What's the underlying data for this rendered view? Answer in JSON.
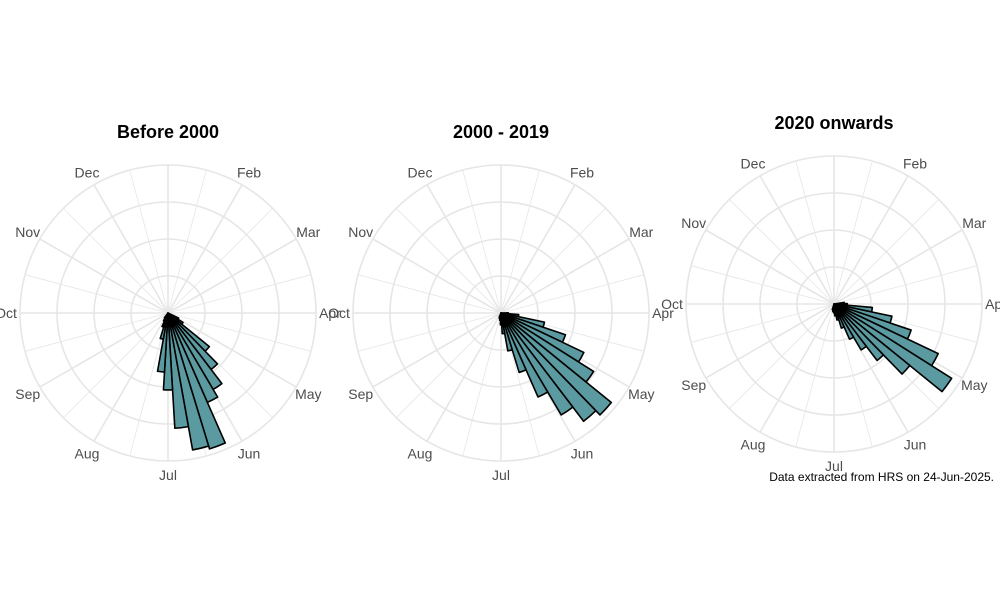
{
  "caption": "Data extracted from HRS on 24-Jun-2025.",
  "colors": {
    "bar_fill": "#5b9aa0",
    "bar_stroke": "#000000",
    "grid": "#e6e6e6"
  },
  "chart_data": [
    {
      "type": "bar",
      "polar": true,
      "title": "Before 2000",
      "month_labels": [
        "Jan",
        "Feb",
        "Mar",
        "Apr",
        "May",
        "Jun",
        "Jul",
        "Aug",
        "Sep",
        "Oct",
        "Nov",
        "Dec"
      ],
      "x_unit": "week of year",
      "x": [
        18,
        19,
        20,
        21,
        22,
        23,
        24,
        25,
        26,
        27,
        28,
        29,
        30,
        31,
        32
      ],
      "values": [
        0.08,
        0.12,
        0.36,
        0.48,
        0.6,
        0.66,
        0.96,
        0.94,
        0.78,
        0.52,
        0.4,
        0.18,
        0.1,
        0.06,
        0.04
      ],
      "ylim": [
        0,
        1
      ],
      "grid": true
    },
    {
      "type": "bar",
      "polar": true,
      "title": "2000 - 2019",
      "month_labels": [
        "Jan",
        "Feb",
        "Mar",
        "Apr",
        "May",
        "Jun",
        "Jul",
        "Aug",
        "Sep",
        "Oct",
        "Nov",
        "Dec"
      ],
      "x_unit": "week of year",
      "x": [
        14,
        15,
        16,
        17,
        18,
        19,
        20,
        21,
        22,
        23,
        24,
        25,
        26,
        27,
        28,
        29,
        30
      ],
      "values": [
        0.05,
        0.12,
        0.3,
        0.46,
        0.62,
        0.74,
        0.96,
        0.92,
        0.8,
        0.62,
        0.42,
        0.26,
        0.14,
        0.08,
        0.05,
        0.04,
        0.03
      ],
      "ylim": [
        0,
        1
      ],
      "grid": true
    },
    {
      "type": "bar",
      "polar": true,
      "title": "2020 onwards",
      "month_labels": [
        "Jan",
        "Feb",
        "Mar",
        "Apr",
        "May",
        "Jun",
        "Jul",
        "Aug",
        "Sep",
        "Oct",
        "Nov",
        "Dec"
      ],
      "x_unit": "week of year",
      "x": [
        13,
        14,
        15,
        16,
        17,
        18,
        19,
        20,
        21,
        22,
        23,
        24,
        25,
        26,
        27,
        28,
        29
      ],
      "values": [
        0.07,
        0.09,
        0.26,
        0.4,
        0.55,
        0.78,
        0.94,
        0.66,
        0.48,
        0.36,
        0.26,
        0.17,
        0.11,
        0.08,
        0.06,
        0.05,
        0.04
      ],
      "ylim": [
        0,
        1
      ],
      "grid": true
    }
  ]
}
